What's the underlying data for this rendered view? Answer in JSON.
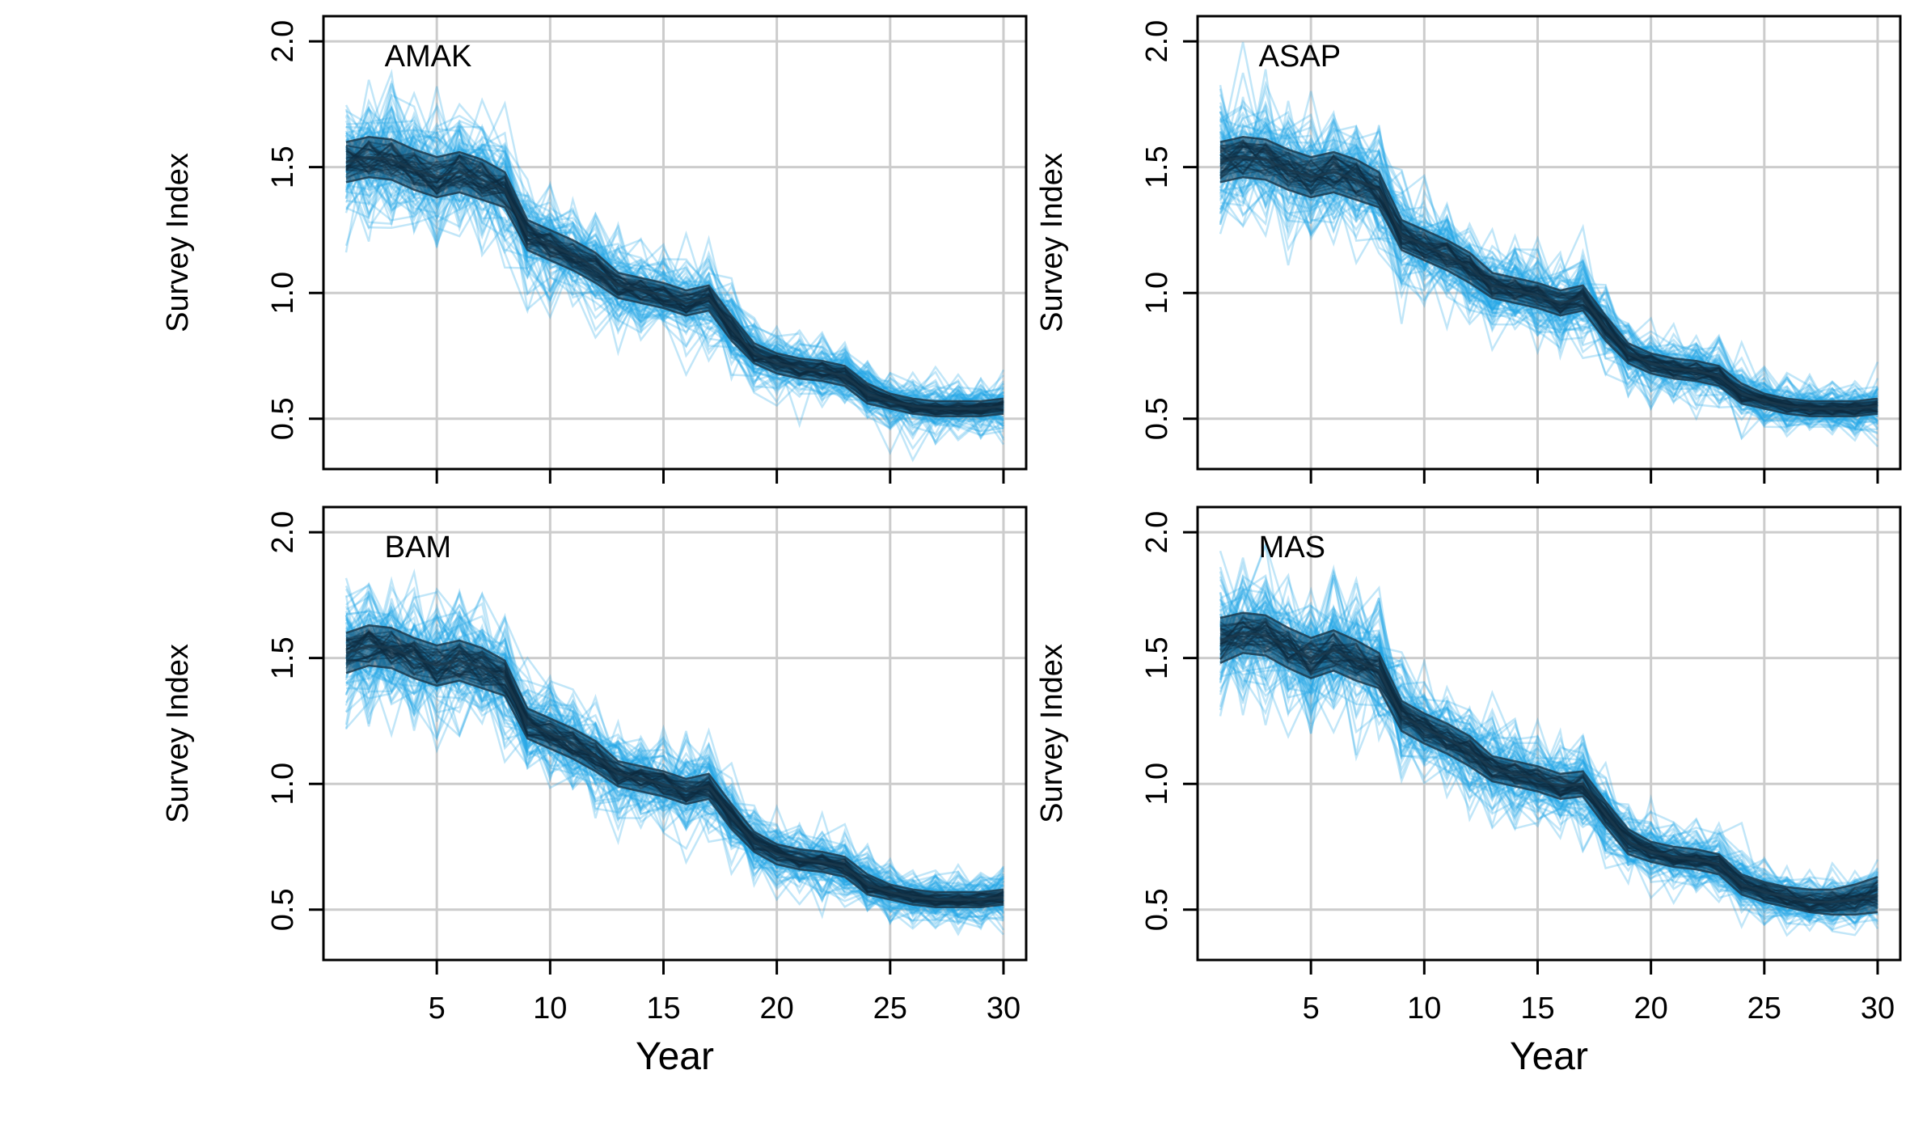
{
  "colors": {
    "simulated_series": "#1fa5e6",
    "band_edges": "#1b3a4d",
    "band_fill": "#113f5c",
    "grid": "#cccccc",
    "axis": "#000000"
  },
  "chart_data": [
    {
      "type": "line",
      "panel": "AMAK",
      "label": "AMAK",
      "xlabel": "",
      "ylabel": "Survey Index",
      "xlim": [
        0,
        31
      ],
      "ylim": [
        0.3,
        2.1
      ],
      "x_ticks": [
        5,
        10,
        15,
        20,
        25,
        30
      ],
      "y_ticks": [
        0.5,
        1.0,
        1.5,
        2.0
      ],
      "y_tick_labels": [
        "0.5",
        "1.0",
        "1.5",
        "2.0"
      ],
      "x_tick_labels": [],
      "grid": true,
      "x": [
        1,
        2,
        3,
        4,
        5,
        6,
        7,
        8,
        9,
        10,
        11,
        12,
        13,
        14,
        15,
        16,
        17,
        18,
        19,
        20,
        21,
        22,
        23,
        24,
        25,
        26,
        27,
        28,
        29,
        30
      ],
      "series": [
        {
          "values": [
            1.52,
            1.54,
            1.53,
            1.49,
            1.46,
            1.48,
            1.45,
            1.41,
            1.23,
            1.19,
            1.15,
            1.1,
            1.03,
            1.01,
            0.99,
            0.96,
            0.98,
            0.86,
            0.76,
            0.72,
            0.7,
            0.69,
            0.67,
            0.6,
            0.57,
            0.55,
            0.54,
            0.54,
            0.54,
            0.55
          ]
        },
        {
          "values": [
            1.6,
            1.62,
            1.61,
            1.57,
            1.54,
            1.56,
            1.53,
            1.48,
            1.29,
            1.25,
            1.21,
            1.16,
            1.08,
            1.06,
            1.04,
            1.01,
            1.03,
            0.91,
            0.8,
            0.76,
            0.74,
            0.73,
            0.71,
            0.64,
            0.6,
            0.58,
            0.57,
            0.57,
            0.57,
            0.58
          ]
        },
        {
          "values": [
            1.44,
            1.46,
            1.45,
            1.41,
            1.38,
            1.4,
            1.37,
            1.34,
            1.17,
            1.13,
            1.09,
            1.04,
            0.98,
            0.96,
            0.94,
            0.91,
            0.93,
            0.81,
            0.72,
            0.68,
            0.66,
            0.65,
            0.63,
            0.56,
            0.54,
            0.52,
            0.51,
            0.51,
            0.51,
            0.52
          ]
        }
      ]
    },
    {
      "type": "line",
      "panel": "ASAP",
      "label": "ASAP",
      "xlabel": "",
      "ylabel": "Survey Index",
      "xlim": [
        0,
        31
      ],
      "ylim": [
        0.3,
        2.1
      ],
      "x_ticks": [
        5,
        10,
        15,
        20,
        25,
        30
      ],
      "y_ticks": [
        0.5,
        1.0,
        1.5,
        2.0
      ],
      "y_tick_labels": [
        "0.5",
        "1.0",
        "1.5",
        "2.0"
      ],
      "x_tick_labels": [],
      "grid": true,
      "x": [
        1,
        2,
        3,
        4,
        5,
        6,
        7,
        8,
        9,
        10,
        11,
        12,
        13,
        14,
        15,
        16,
        17,
        18,
        19,
        20,
        21,
        22,
        23,
        24,
        25,
        26,
        27,
        28,
        29,
        30
      ],
      "series": [
        {
          "values": [
            1.52,
            1.54,
            1.53,
            1.49,
            1.46,
            1.48,
            1.45,
            1.41,
            1.23,
            1.19,
            1.15,
            1.1,
            1.03,
            1.01,
            0.99,
            0.96,
            0.98,
            0.86,
            0.76,
            0.72,
            0.7,
            0.69,
            0.67,
            0.6,
            0.57,
            0.55,
            0.54,
            0.54,
            0.54,
            0.55
          ]
        },
        {
          "values": [
            1.6,
            1.62,
            1.61,
            1.57,
            1.54,
            1.56,
            1.53,
            1.48,
            1.29,
            1.25,
            1.21,
            1.16,
            1.08,
            1.06,
            1.04,
            1.01,
            1.03,
            0.91,
            0.8,
            0.76,
            0.74,
            0.73,
            0.71,
            0.64,
            0.6,
            0.58,
            0.57,
            0.57,
            0.57,
            0.58
          ]
        },
        {
          "values": [
            1.44,
            1.46,
            1.45,
            1.41,
            1.38,
            1.4,
            1.37,
            1.34,
            1.17,
            1.13,
            1.09,
            1.04,
            0.98,
            0.96,
            0.94,
            0.91,
            0.93,
            0.81,
            0.72,
            0.68,
            0.66,
            0.65,
            0.63,
            0.56,
            0.54,
            0.52,
            0.51,
            0.51,
            0.51,
            0.52
          ]
        }
      ]
    },
    {
      "type": "line",
      "panel": "BAM",
      "label": "BAM",
      "xlabel": "Year",
      "ylabel": "Survey Index",
      "xlim": [
        0,
        31
      ],
      "ylim": [
        0.3,
        2.1
      ],
      "x_ticks": [
        5,
        10,
        15,
        20,
        25,
        30
      ],
      "y_ticks": [
        0.5,
        1.0,
        1.5,
        2.0
      ],
      "y_tick_labels": [
        "0.5",
        "1.0",
        "1.5",
        "2.0"
      ],
      "x_tick_labels": [
        "5",
        "10",
        "15",
        "20",
        "25",
        "30"
      ],
      "grid": true,
      "x": [
        1,
        2,
        3,
        4,
        5,
        6,
        7,
        8,
        9,
        10,
        11,
        12,
        13,
        14,
        15,
        16,
        17,
        18,
        19,
        20,
        21,
        22,
        23,
        24,
        25,
        26,
        27,
        28,
        29,
        30
      ],
      "series": [
        {
          "values": [
            1.52,
            1.55,
            1.54,
            1.5,
            1.47,
            1.49,
            1.46,
            1.42,
            1.24,
            1.2,
            1.16,
            1.11,
            1.04,
            1.02,
            1.0,
            0.97,
            0.99,
            0.87,
            0.77,
            0.72,
            0.7,
            0.69,
            0.67,
            0.6,
            0.57,
            0.55,
            0.54,
            0.54,
            0.54,
            0.55
          ]
        },
        {
          "values": [
            1.6,
            1.63,
            1.62,
            1.58,
            1.55,
            1.57,
            1.54,
            1.49,
            1.3,
            1.26,
            1.22,
            1.17,
            1.09,
            1.07,
            1.05,
            1.02,
            1.04,
            0.92,
            0.81,
            0.76,
            0.74,
            0.73,
            0.71,
            0.64,
            0.6,
            0.58,
            0.57,
            0.57,
            0.57,
            0.58
          ]
        },
        {
          "values": [
            1.44,
            1.47,
            1.46,
            1.42,
            1.39,
            1.41,
            1.38,
            1.35,
            1.18,
            1.14,
            1.1,
            1.05,
            0.99,
            0.97,
            0.95,
            0.92,
            0.94,
            0.82,
            0.73,
            0.68,
            0.66,
            0.65,
            0.63,
            0.56,
            0.54,
            0.52,
            0.51,
            0.51,
            0.51,
            0.52
          ]
        }
      ]
    },
    {
      "type": "line",
      "panel": "MAS",
      "label": "MAS",
      "xlabel": "Year",
      "ylabel": "Survey Index",
      "xlim": [
        0,
        31
      ],
      "ylim": [
        0.3,
        2.1
      ],
      "x_ticks": [
        5,
        10,
        15,
        20,
        25,
        30
      ],
      "y_ticks": [
        0.5,
        1.0,
        1.5,
        2.0
      ],
      "y_tick_labels": [
        "0.5",
        "1.0",
        "1.5",
        "2.0"
      ],
      "x_tick_labels": [
        "5",
        "10",
        "15",
        "20",
        "25",
        "30"
      ],
      "grid": true,
      "x": [
        1,
        2,
        3,
        4,
        5,
        6,
        7,
        8,
        9,
        10,
        11,
        12,
        13,
        14,
        15,
        16,
        17,
        18,
        19,
        20,
        21,
        22,
        23,
        24,
        25,
        26,
        27,
        28,
        29,
        30
      ],
      "series": [
        {
          "values": [
            1.57,
            1.6,
            1.59,
            1.54,
            1.5,
            1.53,
            1.49,
            1.45,
            1.27,
            1.22,
            1.18,
            1.13,
            1.06,
            1.04,
            1.02,
            0.99,
            1.0,
            0.88,
            0.77,
            0.73,
            0.71,
            0.7,
            0.68,
            0.6,
            0.57,
            0.55,
            0.53,
            0.53,
            0.54,
            0.56
          ]
        },
        {
          "values": [
            1.66,
            1.68,
            1.67,
            1.62,
            1.58,
            1.61,
            1.57,
            1.52,
            1.33,
            1.28,
            1.24,
            1.19,
            1.11,
            1.09,
            1.07,
            1.04,
            1.05,
            0.93,
            0.82,
            0.77,
            0.75,
            0.74,
            0.72,
            0.64,
            0.61,
            0.59,
            0.58,
            0.58,
            0.6,
            0.63
          ]
        },
        {
          "values": [
            1.48,
            1.52,
            1.51,
            1.46,
            1.42,
            1.45,
            1.41,
            1.38,
            1.21,
            1.16,
            1.12,
            1.07,
            1.01,
            0.99,
            0.97,
            0.94,
            0.95,
            0.83,
            0.72,
            0.69,
            0.67,
            0.66,
            0.64,
            0.56,
            0.53,
            0.51,
            0.49,
            0.48,
            0.48,
            0.49
          ]
        }
      ]
    }
  ]
}
